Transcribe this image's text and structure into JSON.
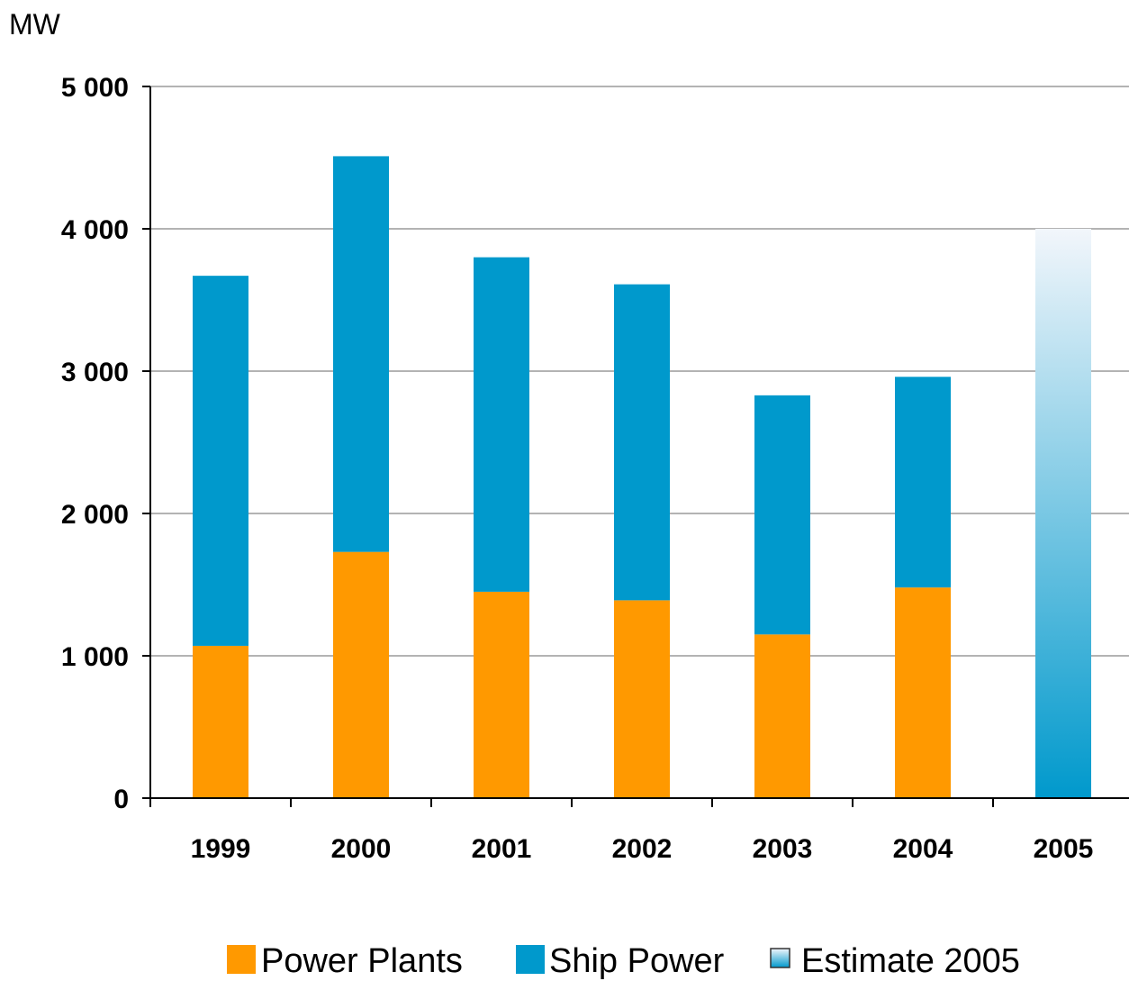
{
  "chart_data": {
    "type": "bar",
    "stacked": true,
    "title": "",
    "xlabel": "",
    "ylabel": "MW",
    "ylim": [
      0,
      5000
    ],
    "yticks": [
      0,
      1000,
      2000,
      3000,
      4000,
      5000
    ],
    "ytick_labels": [
      "0",
      "1 000",
      "2 000",
      "3 000",
      "4 000",
      "5 000"
    ],
    "grid": true,
    "legend_position": "bottom",
    "categories": [
      "1999",
      "2000",
      "2001",
      "2002",
      "2003",
      "2004",
      "2005"
    ],
    "series": [
      {
        "name": "Power Plants",
        "color": "#FF9900",
        "values": [
          1070,
          1730,
          1450,
          1390,
          1150,
          1480,
          null
        ]
      },
      {
        "name": "Ship Power",
        "color": "#0099CC",
        "values": [
          2600,
          2780,
          2350,
          2220,
          1680,
          1480,
          null
        ]
      },
      {
        "name": "Estimate 2005",
        "color_top": "#F2F6FB",
        "color_bottom": "#0099CC",
        "values": [
          null,
          null,
          null,
          null,
          null,
          null,
          4000
        ]
      }
    ]
  }
}
